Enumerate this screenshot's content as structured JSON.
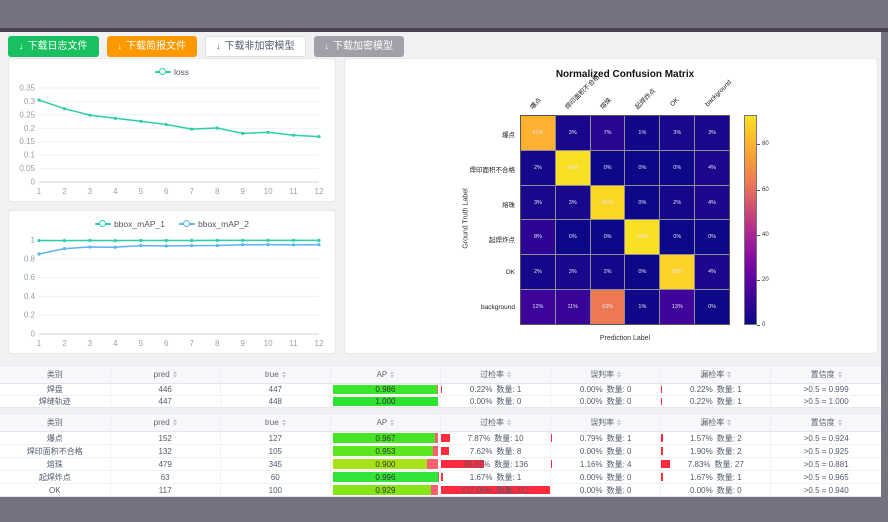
{
  "toolbar": {
    "buttons": [
      {
        "label": "下载日志文件",
        "type": "success"
      },
      {
        "label": "下载简报文件",
        "type": "warning"
      },
      {
        "label": "下载非加密模型",
        "type": "default"
      },
      {
        "label": "下载加密模型",
        "type": "disabled"
      }
    ]
  },
  "chart_data": [
    {
      "id": "loss",
      "type": "line",
      "x": [
        1,
        2,
        3,
        4,
        5,
        6,
        7,
        8,
        9,
        10,
        11,
        12
      ],
      "ylim": [
        0,
        0.35
      ],
      "y_ticks": [
        0,
        0.05,
        0.1,
        0.15,
        0.2,
        0.25,
        0.3,
        0.35
      ],
      "legend_position": "top",
      "grid": true,
      "series": [
        {
          "name": "loss",
          "color": "#2bd0a8",
          "values": [
            0.305,
            0.273,
            0.249,
            0.237,
            0.226,
            0.214,
            0.197,
            0.201,
            0.181,
            0.185,
            0.174,
            0.169
          ]
        }
      ]
    },
    {
      "id": "map",
      "type": "line",
      "x": [
        1,
        2,
        3,
        4,
        5,
        6,
        7,
        8,
        9,
        10,
        11,
        12
      ],
      "ylim": [
        0,
        1
      ],
      "y_ticks": [
        0,
        0.2,
        0.4,
        0.6,
        0.8,
        1
      ],
      "legend_position": "top",
      "grid": true,
      "series": [
        {
          "name": "bbox_mAP_1",
          "color": "#2bd0a8",
          "values": [
            0.995,
            0.994,
            0.995,
            0.994,
            0.995,
            0.995,
            0.995,
            0.996,
            0.996,
            0.996,
            0.996,
            0.996
          ]
        },
        {
          "name": "bbox_mAP_2",
          "color": "#5bb3f0",
          "values": [
            0.851,
            0.908,
            0.925,
            0.923,
            0.94,
            0.936,
            0.94,
            0.941,
            0.949,
            0.951,
            0.948,
            0.95
          ]
        }
      ]
    },
    {
      "id": "confusion_matrix",
      "type": "heatmap",
      "title": "Normalized Confusion Matrix",
      "xlabel": "Prediction Label",
      "ylabel": "Ground Truth Label",
      "classes": [
        "爆点",
        "焊印面积不合格",
        "熔珠",
        "起焊炸点",
        "OK",
        "background"
      ],
      "values_percent": [
        [
          81,
          3,
          7,
          1,
          3,
          3
        ],
        [
          2,
          93,
          0,
          0,
          0,
          4
        ],
        [
          3,
          3,
          90,
          0,
          2,
          4
        ],
        [
          8,
          0,
          0,
          93,
          0,
          0
        ],
        [
          2,
          3,
          2,
          0,
          89,
          4
        ],
        [
          12,
          11,
          63,
          1,
          13,
          0
        ]
      ],
      "vmax": 93,
      "colorbar_ticks": [
        0,
        20,
        40,
        60,
        80
      ]
    }
  ],
  "tables": {
    "headers": [
      "类别",
      "pred",
      "true",
      "AP",
      "过检率",
      "误判率",
      "漏检率",
      "置信度"
    ],
    "sortable": [
      false,
      true,
      true,
      true,
      true,
      true,
      true,
      true
    ],
    "count_label": "数量",
    "groups": [
      {
        "rows": [
          {
            "class": "焊盘",
            "pred": "446",
            "true": "447",
            "ap": 0.986,
            "ap_text": "0.986",
            "ap_color": "#3ae62b",
            "over": {
              "pct_text": "0.22%",
              "count": "1",
              "pct": 0.22
            },
            "mis": {
              "pct_text": "0.00%",
              "count": "0",
              "pct": 0
            },
            "miss": {
              "pct_text": "0.22%",
              "count": "1",
              "pct": 0.22
            },
            "conf": ">0.5 = 0.999"
          },
          {
            "class": "焊缝轨迹",
            "pred": "447",
            "true": "448",
            "ap": 1.0,
            "ap_text": "1.000",
            "ap_color": "#2ee32e",
            "over": {
              "pct_text": "0.00%",
              "count": "0",
              "pct": 0
            },
            "mis": {
              "pct_text": "0.00%",
              "count": "0",
              "pct": 0
            },
            "miss": {
              "pct_text": "0.22%",
              "count": "1",
              "pct": 0.22
            },
            "conf": ">0.5 = 1.000"
          }
        ]
      },
      {
        "rows": [
          {
            "class": "爆点",
            "pred": "152",
            "true": "127",
            "ap": 0.967,
            "ap_text": "0.967",
            "ap_color": "#46e424",
            "over": {
              "pct_text": "7.87%",
              "count": "10",
              "pct": 7.87
            },
            "mis": {
              "pct_text": "0.79%",
              "count": "1",
              "pct": 0.79
            },
            "miss": {
              "pct_text": "1.57%",
              "count": "2",
              "pct": 1.57
            },
            "conf": ">0.5 = 0.924"
          },
          {
            "class": "焊印面积不合格",
            "pred": "132",
            "true": "105",
            "ap": 0.953,
            "ap_text": "0.953",
            "ap_color": "#5ce61f",
            "over": {
              "pct_text": "7.62%",
              "count": "8",
              "pct": 7.62
            },
            "mis": {
              "pct_text": "0.00%",
              "count": "0",
              "pct": 0
            },
            "miss": {
              "pct_text": "1.90%",
              "count": "2",
              "pct": 1.9
            },
            "conf": ">0.5 = 0.925"
          },
          {
            "class": "熔珠",
            "pred": "479",
            "true": "345",
            "ap": 0.9,
            "ap_text": "0.900",
            "ap_color": "#a9e214",
            "over": {
              "pct_text": "39.42%",
              "count": "136",
              "pct": 39.42
            },
            "mis": {
              "pct_text": "1.16%",
              "count": "4",
              "pct": 1.16
            },
            "miss": {
              "pct_text": "7.83%",
              "count": "27",
              "pct": 7.83
            },
            "conf": ">0.5 = 0.881"
          },
          {
            "class": "起焊炸点",
            "pred": "63",
            "true": "60",
            "ap": 0.996,
            "ap_text": "0.996",
            "ap_color": "#30e438",
            "over": {
              "pct_text": "1.67%",
              "count": "1",
              "pct": 1.67
            },
            "mis": {
              "pct_text": "0.00%",
              "count": "0",
              "pct": 0
            },
            "miss": {
              "pct_text": "1.67%",
              "count": "1",
              "pct": 1.67
            },
            "conf": ">0.5 = 0.965"
          },
          {
            "class": "OK",
            "pred": "117",
            "true": "100",
            "ap": 0.929,
            "ap_text": "0.929",
            "ap_color": "#84e415",
            "over": {
              "pct_text": "117.00%",
              "count": "117",
              "pct": 117.0
            },
            "mis": {
              "pct_text": "0.00%",
              "count": "0",
              "pct": 0
            },
            "miss": {
              "pct_text": "0.00%",
              "count": "0",
              "pct": 0
            },
            "conf": ">0.5 = 0.940"
          }
        ]
      }
    ]
  }
}
